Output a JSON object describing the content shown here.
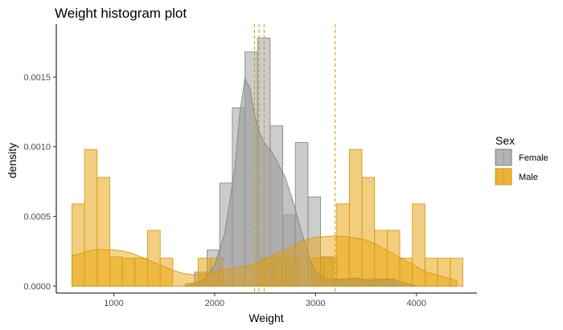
{
  "colors": {
    "female_fill": "#999999",
    "female_line": "#7f7f7f",
    "male_fill": "#E69F00",
    "male_line": "#D99200",
    "axis": "#000000"
  },
  "chart_data": {
    "type": "histogram",
    "title": "Weight histogram plot",
    "xlabel": "Weight",
    "ylabel": "density",
    "xlim": [
      430,
      4600
    ],
    "ylim": [
      -5e-05,
      0.00188
    ],
    "x_ticks": [
      1000,
      2000,
      3000,
      4000
    ],
    "y_ticks": [
      0.0,
      0.0005,
      0.001,
      0.0015
    ],
    "y_tick_labels": [
      "0.0000",
      "0.0005",
      "0.0010",
      "0.0015"
    ],
    "x_tick_labels": [
      "1000",
      "2000",
      "3000",
      "4000"
    ],
    "bin_width": 125,
    "grid": false,
    "legend": {
      "title": "Sex",
      "position": "right",
      "entries": [
        "Female",
        "Male"
      ]
    },
    "series": [
      {
        "name": "Female",
        "bins": [
          {
            "x0": 1800,
            "x1": 1925,
            "density": 0.0001
          },
          {
            "x0": 1925,
            "x1": 2050,
            "density": 0.00026
          },
          {
            "x0": 2050,
            "x1": 2175,
            "density": 0.00074
          },
          {
            "x0": 2175,
            "x1": 2300,
            "density": 0.00128
          },
          {
            "x0": 2300,
            "x1": 2425,
            "density": 0.00168
          },
          {
            "x0": 2425,
            "x1": 2550,
            "density": 0.00178
          },
          {
            "x0": 2550,
            "x1": 2675,
            "density": 0.00115
          },
          {
            "x0": 2675,
            "x1": 2800,
            "density": 0.00051
          },
          {
            "x0": 2800,
            "x1": 2925,
            "density": 0.00103
          },
          {
            "x0": 2925,
            "x1": 3050,
            "density": 0.00064
          },
          {
            "x0": 3050,
            "x1": 3175,
            "density": 0.00021
          },
          {
            "x0": 3175,
            "x1": 3300,
            "density": 5e-05
          },
          {
            "x0": 3300,
            "x1": 3425,
            "density": 5e-05
          },
          {
            "x0": 3425,
            "x1": 3550,
            "density": 5e-05
          },
          {
            "x0": 3550,
            "x1": 3675,
            "density": 5e-05
          },
          {
            "x0": 3675,
            "x1": 3800,
            "density": 5e-05
          }
        ],
        "density_curve": {
          "x": [
            1700,
            1800,
            1900,
            2000,
            2100,
            2200,
            2250,
            2300,
            2350,
            2400,
            2450,
            2500,
            2550,
            2600,
            2650,
            2700,
            2750,
            2800,
            2850,
            2900,
            2950,
            3000,
            3100,
            3200,
            3300,
            3400,
            3500,
            3600,
            3700,
            3800,
            3900,
            4000
          ],
          "y": [
            0.0,
            2e-05,
            5e-05,
            0.00015,
            0.00038,
            0.00085,
            0.00125,
            0.00149,
            0.00142,
            0.00122,
            0.00109,
            0.00102,
            0.00098,
            0.00092,
            0.00085,
            0.00078,
            0.00067,
            0.00055,
            0.00042,
            0.0003,
            0.00018,
            0.0001,
            5e-05,
            4e-05,
            5e-05,
            6e-05,
            4e-05,
            4e-05,
            5e-05,
            4e-05,
            2e-05,
            0.0
          ]
        },
        "mean_lines": [
          2395,
          2440
        ]
      },
      {
        "name": "Male",
        "bins": [
          {
            "x0": 585,
            "x1": 710,
            "density": 0.00059
          },
          {
            "x0": 710,
            "x1": 835,
            "density": 0.00098
          },
          {
            "x0": 835,
            "x1": 960,
            "density": 0.00078
          },
          {
            "x0": 960,
            "x1": 1085,
            "density": 0.00021
          },
          {
            "x0": 1085,
            "x1": 1210,
            "density": 0.0002
          },
          {
            "x0": 1210,
            "x1": 1335,
            "density": 0.0002
          },
          {
            "x0": 1335,
            "x1": 1460,
            "density": 0.0004
          },
          {
            "x0": 1460,
            "x1": 1585,
            "density": 0.0002
          },
          {
            "x0": 1710,
            "x1": 1835,
            "density": 2e-05
          },
          {
            "x0": 1835,
            "x1": 1960,
            "density": 0.0002
          },
          {
            "x0": 1960,
            "x1": 2085,
            "density": 0.0002
          },
          {
            "x0": 2460,
            "x1": 2585,
            "density": 0.0002
          },
          {
            "x0": 2585,
            "x1": 2710,
            "density": 0.0002
          },
          {
            "x0": 2710,
            "x1": 2835,
            "density": 0.0002
          },
          {
            "x0": 2960,
            "x1": 3085,
            "density": 0.0002
          },
          {
            "x0": 3085,
            "x1": 3210,
            "density": 0.0002
          },
          {
            "x0": 3210,
            "x1": 3335,
            "density": 0.00059
          },
          {
            "x0": 3335,
            "x1": 3460,
            "density": 0.00098
          },
          {
            "x0": 3460,
            "x1": 3585,
            "density": 0.00078
          },
          {
            "x0": 3585,
            "x1": 3710,
            "density": 0.0004
          },
          {
            "x0": 3710,
            "x1": 3835,
            "density": 0.0004
          },
          {
            "x0": 3835,
            "x1": 3960,
            "density": 0.0002
          },
          {
            "x0": 3960,
            "x1": 4085,
            "density": 0.00059
          },
          {
            "x0": 4085,
            "x1": 4210,
            "density": 0.0002
          },
          {
            "x0": 4210,
            "x1": 4335,
            "density": 0.0002
          },
          {
            "x0": 4335,
            "x1": 4460,
            "density": 0.0002
          }
        ],
        "density_curve": {
          "x": [
            585,
            650,
            700,
            750,
            800,
            850,
            900,
            1000,
            1100,
            1200,
            1300,
            1400,
            1500,
            1600,
            1700,
            1800,
            1900,
            2000,
            2100,
            2200,
            2300,
            2400,
            2500,
            2600,
            2700,
            2800,
            2900,
            3000,
            3100,
            3200,
            3300,
            3400,
            3500,
            3600,
            3700,
            3800,
            3900,
            4000,
            4100,
            4200,
            4300,
            4400
          ],
          "y": [
            0.00022,
            0.00023,
            0.00024,
            0.00025,
            0.00026,
            0.000262,
            0.000262,
            0.00026,
            0.00025,
            0.00023,
            0.0002,
            0.00017,
            0.00014,
            0.00011,
            9e-05,
            8e-05,
            8.5e-05,
            0.0001,
            0.00012,
            0.00013,
            0.00014,
            0.00016,
            0.00019,
            0.00023,
            0.00026,
            0.0003,
            0.00033,
            0.00035,
            0.000355,
            0.00036,
            0.000355,
            0.000345,
            0.00033,
            0.0003,
            0.00026,
            0.00022,
            0.00018,
            0.00014,
            0.0001,
            8e-05,
            6e-05,
            4e-05
          ]
        },
        "mean_lines": [
          2490,
          3195
        ]
      }
    ]
  }
}
